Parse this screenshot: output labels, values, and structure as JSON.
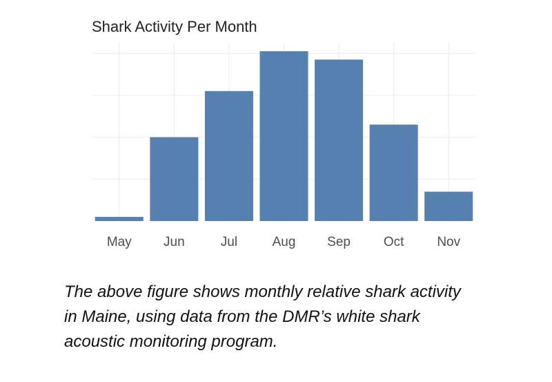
{
  "chart_data": {
    "type": "bar",
    "title": "Shark Activity Per Month",
    "xlabel": "",
    "ylabel": "",
    "categories": [
      "May",
      "Jun",
      "Jul",
      "Aug",
      "Sep",
      "Oct",
      "Nov"
    ],
    "values": [
      2,
      40,
      62,
      81,
      77,
      46,
      14
    ],
    "ylim": [
      0,
      85
    ],
    "grid": true,
    "bar_color": "#5580b0",
    "grid_color": "#ebebeb"
  },
  "caption": {
    "line1": "The above figure shows monthly relative shark activity",
    "line2": "in Maine, using data from the DMR’s white shark",
    "line3": "acoustic monitoring program."
  }
}
